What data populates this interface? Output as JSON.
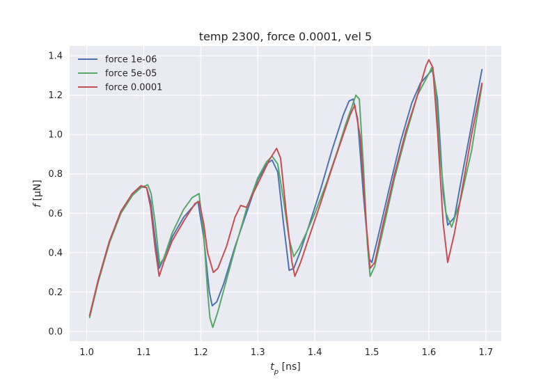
{
  "chart_data": {
    "type": "line",
    "title": "temp 2300, force 0.0001, vel 5",
    "xlabel_main": "t",
    "xlabel_sub": "p",
    "xlabel_unit": " [ns]",
    "ylabel_main": "f",
    "ylabel_unit": " [μN]",
    "xlim": [
      0.97,
      1.727
    ],
    "ylim": [
      -0.05,
      1.45
    ],
    "xticks": [
      1.0,
      1.1,
      1.2,
      1.3,
      1.4,
      1.5,
      1.6,
      1.7
    ],
    "xtick_labels": [
      "1.0",
      "1.1",
      "1.2",
      "1.3",
      "1.4",
      "1.5",
      "1.6",
      "1.7"
    ],
    "yticks": [
      0.0,
      0.2,
      0.4,
      0.6,
      0.8,
      1.0,
      1.2,
      1.4
    ],
    "ytick_labels": [
      "0.0",
      "0.2",
      "0.4",
      "0.6",
      "0.8",
      "1.0",
      "1.2",
      "1.4"
    ],
    "grid": true,
    "legend_position": "top-left",
    "colors": {
      "background": "#eaeaf2",
      "grid": "#ffffff"
    },
    "series": [
      {
        "name": "force 1e-06",
        "color": "#4c72b0",
        "x": [
          1.005,
          1.02,
          1.04,
          1.06,
          1.08,
          1.095,
          1.105,
          1.112,
          1.12,
          1.127,
          1.135,
          1.15,
          1.17,
          1.185,
          1.195,
          1.205,
          1.215,
          1.22,
          1.228,
          1.24,
          1.26,
          1.28,
          1.3,
          1.315,
          1.325,
          1.335,
          1.345,
          1.355,
          1.363,
          1.375,
          1.39,
          1.41,
          1.43,
          1.45,
          1.46,
          1.467,
          1.475,
          1.485,
          1.495,
          1.5,
          1.51,
          1.53,
          1.55,
          1.57,
          1.585,
          1.6,
          1.607,
          1.615,
          1.625,
          1.633,
          1.645,
          1.66,
          1.675,
          1.693
        ],
        "y": [
          0.08,
          0.26,
          0.46,
          0.61,
          0.7,
          0.735,
          0.73,
          0.66,
          0.47,
          0.32,
          0.37,
          0.48,
          0.58,
          0.63,
          0.66,
          0.48,
          0.2,
          0.13,
          0.15,
          0.24,
          0.43,
          0.6,
          0.77,
          0.85,
          0.87,
          0.81,
          0.55,
          0.31,
          0.32,
          0.41,
          0.54,
          0.72,
          0.92,
          1.1,
          1.17,
          1.18,
          1.08,
          0.7,
          0.37,
          0.35,
          0.47,
          0.72,
          0.96,
          1.16,
          1.26,
          1.31,
          1.33,
          1.18,
          0.7,
          0.54,
          0.58,
          0.82,
          1.05,
          1.33
        ]
      },
      {
        "name": "force 5e-05",
        "color": "#55a868",
        "x": [
          1.005,
          1.02,
          1.04,
          1.06,
          1.08,
          1.095,
          1.107,
          1.113,
          1.12,
          1.128,
          1.135,
          1.15,
          1.17,
          1.185,
          1.197,
          1.205,
          1.212,
          1.216,
          1.221,
          1.23,
          1.245,
          1.26,
          1.28,
          1.3,
          1.315,
          1.325,
          1.335,
          1.345,
          1.355,
          1.363,
          1.372,
          1.385,
          1.4,
          1.42,
          1.44,
          1.455,
          1.465,
          1.472,
          1.478,
          1.485,
          1.492,
          1.497,
          1.505,
          1.52,
          1.54,
          1.56,
          1.58,
          1.6,
          1.605,
          1.612,
          1.62,
          1.63,
          1.64,
          1.655,
          1.675,
          1.693
        ],
        "y": [
          0.07,
          0.25,
          0.45,
          0.6,
          0.69,
          0.73,
          0.745,
          0.7,
          0.55,
          0.34,
          0.37,
          0.5,
          0.62,
          0.68,
          0.7,
          0.5,
          0.2,
          0.07,
          0.02,
          0.1,
          0.26,
          0.42,
          0.62,
          0.78,
          0.86,
          0.89,
          0.85,
          0.67,
          0.47,
          0.38,
          0.42,
          0.5,
          0.6,
          0.75,
          0.92,
          1.06,
          1.14,
          1.2,
          1.18,
          0.85,
          0.45,
          0.28,
          0.33,
          0.52,
          0.78,
          1.0,
          1.2,
          1.31,
          1.34,
          1.24,
          0.88,
          0.6,
          0.53,
          0.66,
          0.92,
          1.25
        ]
      },
      {
        "name": "force 0.0001",
        "color": "#c44e52",
        "x": [
          1.005,
          1.02,
          1.04,
          1.06,
          1.08,
          1.095,
          1.105,
          1.112,
          1.12,
          1.127,
          1.135,
          1.15,
          1.17,
          1.19,
          1.197,
          1.205,
          1.212,
          1.222,
          1.23,
          1.245,
          1.26,
          1.27,
          1.28,
          1.3,
          1.32,
          1.333,
          1.34,
          1.35,
          1.36,
          1.365,
          1.375,
          1.39,
          1.41,
          1.43,
          1.45,
          1.462,
          1.47,
          1.48,
          1.49,
          1.497,
          1.505,
          1.52,
          1.54,
          1.56,
          1.58,
          1.595,
          1.6,
          1.607,
          1.615,
          1.625,
          1.633,
          1.645,
          1.66,
          1.675,
          1.693
        ],
        "y": [
          0.08,
          0.26,
          0.46,
          0.61,
          0.7,
          0.74,
          0.73,
          0.63,
          0.42,
          0.28,
          0.35,
          0.46,
          0.56,
          0.65,
          0.66,
          0.55,
          0.4,
          0.3,
          0.32,
          0.43,
          0.58,
          0.64,
          0.63,
          0.75,
          0.87,
          0.93,
          0.88,
          0.6,
          0.35,
          0.28,
          0.35,
          0.48,
          0.65,
          0.83,
          1.0,
          1.1,
          1.15,
          0.98,
          0.55,
          0.32,
          0.35,
          0.55,
          0.8,
          1.02,
          1.2,
          1.35,
          1.38,
          1.34,
          1.02,
          0.55,
          0.35,
          0.5,
          0.75,
          1.0,
          1.26
        ]
      }
    ]
  }
}
